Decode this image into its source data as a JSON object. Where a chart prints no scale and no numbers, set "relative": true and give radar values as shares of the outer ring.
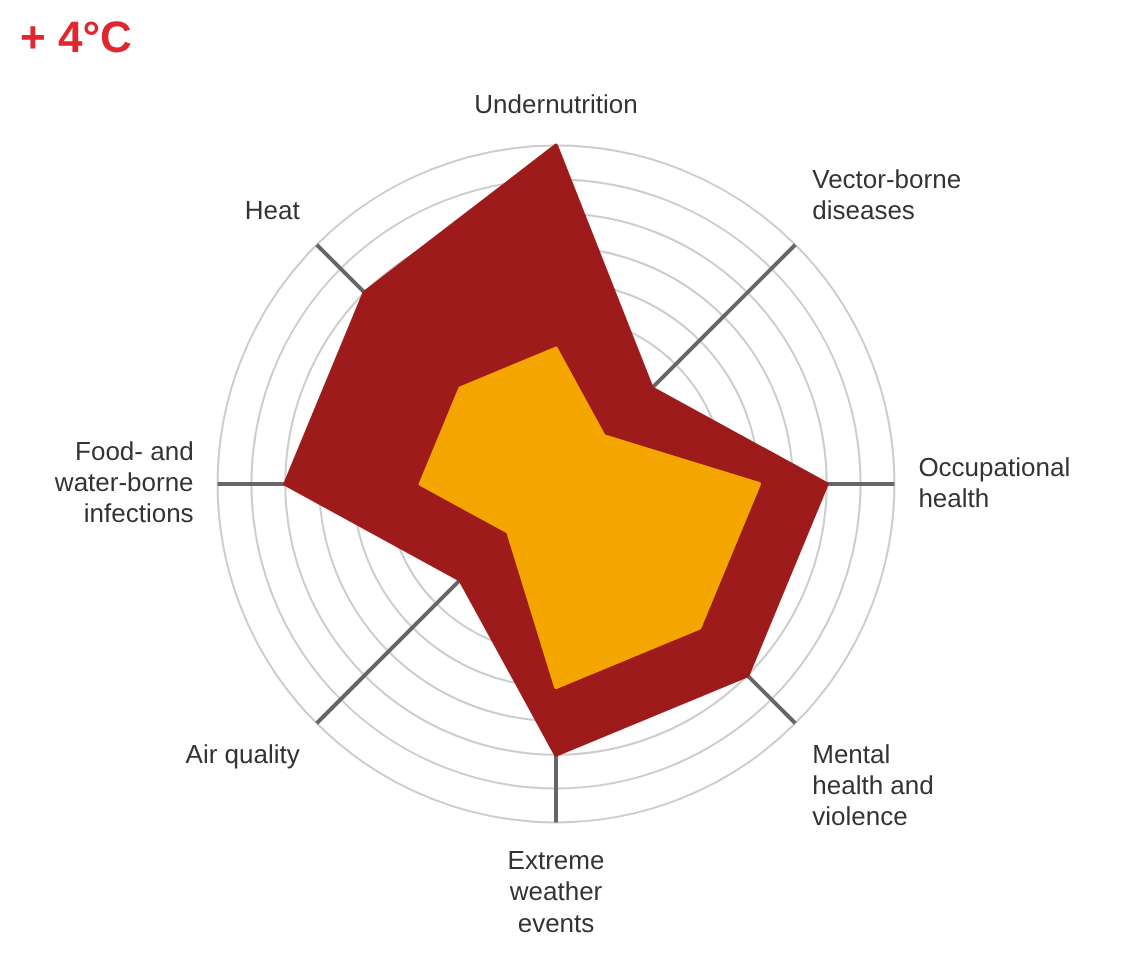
{
  "chart_data": {
    "type": "radar",
    "title": "+ 4°C",
    "relative": true,
    "grid": true,
    "legend": false,
    "categories": [
      "Undernutrition",
      "Vector-borne diseases",
      "Occupational health",
      "Mental health and violence",
      "Extreme weather events",
      "Air quality",
      "Food- and water-borne infections",
      "Heat"
    ],
    "series": [
      {
        "color": "#9e1b1b",
        "values": [
          1,
          0.4,
          0.8,
          0.8,
          0.8,
          0.4,
          0.8,
          0.8
        ]
      },
      {
        "color": "#f5a500",
        "values": [
          0.4,
          0.2,
          0.6,
          0.6,
          0.6,
          0.2,
          0.4,
          0.4
        ]
      }
    ]
  }
}
